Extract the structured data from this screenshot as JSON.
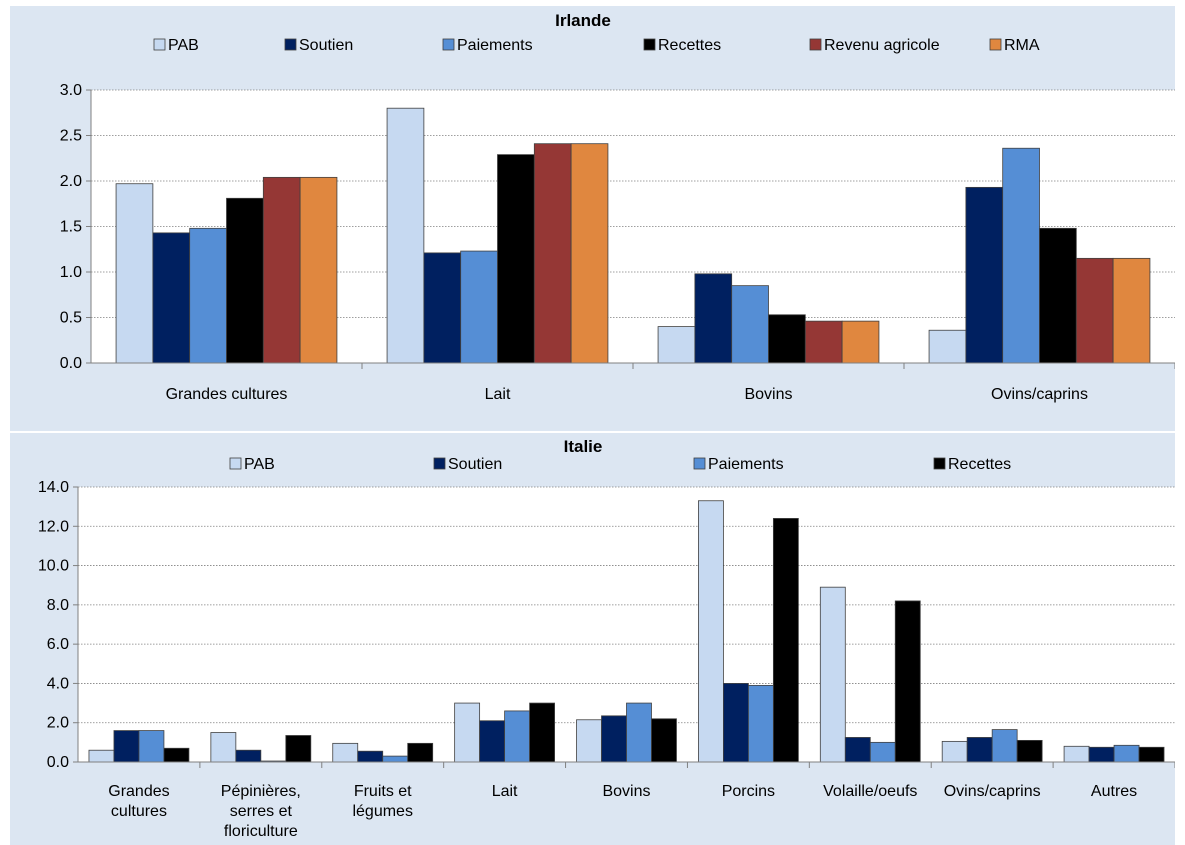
{
  "chart_data": [
    {
      "type": "bar",
      "title": "Irlande",
      "categories": [
        "Grandes cultures",
        "Lait",
        "Bovins",
        "Ovins/caprins"
      ],
      "series": [
        {
          "name": "PAB",
          "color": "#c6d9f1",
          "values": [
            1.97,
            2.8,
            0.4,
            0.36
          ]
        },
        {
          "name": "Soutien",
          "color": "#002060",
          "values": [
            1.43,
            1.21,
            0.98,
            1.93
          ]
        },
        {
          "name": "Paiements",
          "color": "#558ed5",
          "values": [
            1.48,
            1.23,
            0.85,
            2.36
          ]
        },
        {
          "name": "Recettes",
          "color": "#000000",
          "values": [
            1.81,
            2.29,
            0.53,
            1.48
          ]
        },
        {
          "name": "Revenu agricole",
          "color": "#953735",
          "values": [
            2.04,
            2.41,
            0.46,
            1.15
          ]
        },
        {
          "name": "RMA",
          "color": "#e0873f",
          "values": [
            2.04,
            2.41,
            0.46,
            1.15
          ]
        }
      ],
      "ylim": [
        0,
        3.0
      ],
      "yticks": [
        "0.0",
        "0.5",
        "1.0",
        "1.5",
        "2.0",
        "2.5",
        "3.0"
      ],
      "grid": "horizontal dotted",
      "legend": "top"
    },
    {
      "type": "bar",
      "title": "Italie",
      "categories": [
        "Grandes cultures",
        "Pépinières, serres et floriculture",
        "Fruits et légumes",
        "Lait",
        "Bovins",
        "Porcins",
        "Volaille/oeufs",
        "Ovins/caprins",
        "Autres"
      ],
      "category_lines": [
        [
          "Grandes",
          "cultures"
        ],
        [
          "Pépinières,",
          "serres et",
          "floriculture"
        ],
        [
          "Fruits et",
          "légumes"
        ],
        [
          "Lait"
        ],
        [
          "Bovins"
        ],
        [
          "Porcins"
        ],
        [
          "Volaille/oeufs"
        ],
        [
          "Ovins/caprins"
        ],
        [
          "Autres"
        ]
      ],
      "series": [
        {
          "name": "PAB",
          "color": "#c6d9f1",
          "values": [
            0.6,
            1.5,
            0.95,
            3.0,
            2.15,
            13.3,
            8.9,
            1.05,
            0.8
          ]
        },
        {
          "name": "Soutien",
          "color": "#002060",
          "values": [
            1.6,
            0.6,
            0.55,
            2.1,
            2.35,
            4.0,
            1.25,
            1.25,
            0.75
          ]
        },
        {
          "name": "Paiements",
          "color": "#558ed5",
          "values": [
            1.6,
            0.05,
            0.3,
            2.6,
            3.0,
            3.9,
            1.0,
            1.65,
            0.85
          ]
        },
        {
          "name": "Recettes",
          "color": "#000000",
          "values": [
            0.7,
            1.35,
            0.95,
            3.0,
            2.2,
            12.4,
            8.2,
            1.1,
            0.75
          ]
        }
      ],
      "ylim": [
        0,
        14.0
      ],
      "yticks": [
        "0.0",
        "2.0",
        "4.0",
        "6.0",
        "8.0",
        "10.0",
        "12.0",
        "14.0"
      ],
      "grid": "horizontal dotted",
      "legend": "top"
    }
  ]
}
